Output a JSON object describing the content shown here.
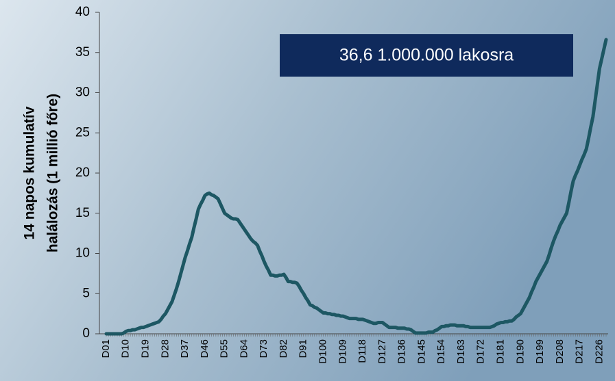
{
  "chart_data": {
    "type": "line",
    "ylabel": [
      "14 napos kumulatív",
      "halálozás (1 millió főre)"
    ],
    "annotation": "36,6 1.000.000 lakosra",
    "categories": [
      "D01",
      null,
      null,
      null,
      null,
      null,
      null,
      null,
      null,
      "D10",
      null,
      null,
      null,
      null,
      null,
      null,
      null,
      null,
      "D19",
      null,
      null,
      null,
      null,
      null,
      null,
      null,
      null,
      "D28",
      null,
      null,
      null,
      null,
      null,
      null,
      null,
      null,
      "D37",
      null,
      null,
      null,
      null,
      null,
      null,
      null,
      null,
      "D46",
      null,
      null,
      null,
      null,
      null,
      null,
      null,
      null,
      "D55",
      null,
      null,
      null,
      null,
      null,
      null,
      null,
      null,
      "D64",
      null,
      null,
      null,
      null,
      null,
      null,
      null,
      null,
      "D73",
      null,
      null,
      null,
      null,
      null,
      null,
      null,
      null,
      "D82",
      null,
      null,
      null,
      null,
      null,
      null,
      null,
      null,
      "D91",
      null,
      null,
      null,
      null,
      null,
      null,
      null,
      null,
      "D100",
      null,
      null,
      null,
      null,
      null,
      null,
      null,
      null,
      "D109",
      null,
      null,
      null,
      null,
      null,
      null,
      null,
      null,
      "D118",
      null,
      null,
      null,
      null,
      null,
      null,
      null,
      null,
      "D127",
      null,
      null,
      null,
      null,
      null,
      null,
      null,
      null,
      "D136",
      null,
      null,
      null,
      null,
      null,
      null,
      null,
      null,
      "D145",
      null,
      null,
      null,
      null,
      null,
      null,
      null,
      null,
      "D154",
      null,
      null,
      null,
      null,
      null,
      null,
      null,
      null,
      "D163",
      null,
      null,
      null,
      null,
      null,
      null,
      null,
      null,
      "D172",
      null,
      null,
      null,
      null,
      null,
      null,
      null,
      null,
      "D181",
      null,
      null,
      null,
      null,
      null,
      null,
      null,
      null,
      "D190",
      null,
      null,
      null,
      null,
      null,
      null,
      null,
      null,
      "D199",
      null,
      null,
      null,
      null,
      null,
      null,
      null,
      null,
      "D208",
      null,
      null,
      null,
      null,
      null,
      null,
      null,
      null,
      "D217",
      null,
      null,
      null,
      null,
      null,
      null,
      null,
      null,
      "D226",
      null,
      null,
      null
    ],
    "series": [
      {
        "name": null,
        "color": "#1d5763",
        "values": [
          0,
          0,
          0,
          0,
          0,
          0,
          0,
          0,
          0.1,
          0.3,
          0.4,
          0.4,
          0.5,
          0.5,
          0.6,
          0.7,
          0.8,
          0.8,
          0.9,
          1.0,
          1.1,
          1.2,
          1.3,
          1.4,
          1.5,
          1.8,
          2.2,
          2.5,
          3.0,
          3.5,
          4.0,
          4.8,
          5.6,
          6.5,
          7.5,
          8.5,
          9.5,
          10.3,
          11.2,
          12.0,
          13.2,
          14.3,
          15.5,
          16.1,
          16.6,
          17.2,
          17.4,
          17.5,
          17.3,
          17.2,
          17.0,
          16.8,
          16.2,
          15.6,
          15.0,
          14.8,
          14.6,
          14.4,
          14.3,
          14.3,
          14.2,
          13.8,
          13.4,
          13.0,
          12.6,
          12.2,
          11.8,
          11.5,
          11.3,
          11.0,
          10.3,
          9.7,
          9.0,
          8.4,
          7.9,
          7.3,
          7.3,
          7.2,
          7.2,
          7.3,
          7.3,
          7.4,
          7.0,
          6.5,
          6.5,
          6.4,
          6.4,
          6.3,
          5.9,
          5.4,
          5.0,
          4.5,
          4.1,
          3.6,
          3.5,
          3.3,
          3.2,
          3.0,
          2.8,
          2.6,
          2.6,
          2.5,
          2.5,
          2.4,
          2.4,
          2.3,
          2.3,
          2.2,
          2.2,
          2.1,
          2.0,
          1.9,
          1.9,
          1.9,
          1.9,
          1.8,
          1.8,
          1.8,
          1.7,
          1.6,
          1.5,
          1.4,
          1.3,
          1.3,
          1.4,
          1.4,
          1.4,
          1.2,
          1.0,
          0.8,
          0.8,
          0.8,
          0.8,
          0.7,
          0.7,
          0.7,
          0.7,
          0.6,
          0.6,
          0.5,
          0.3,
          0.1,
          0.1,
          0.1,
          0.1,
          0.1,
          0.1,
          0.2,
          0.2,
          0.2,
          0.4,
          0.5,
          0.7,
          0.9,
          0.9,
          1.0,
          1.0,
          1.1,
          1.1,
          1.1,
          1.0,
          1.0,
          1.0,
          1.0,
          0.9,
          0.9,
          0.8,
          0.8,
          0.8,
          0.8,
          0.8,
          0.8,
          0.8,
          0.8,
          0.8,
          0.8,
          0.9,
          1.0,
          1.2,
          1.3,
          1.4,
          1.4,
          1.5,
          1.5,
          1.6,
          1.6,
          1.8,
          2.1,
          2.3,
          2.5,
          3.0,
          3.5,
          4.0,
          4.5,
          5.2,
          5.8,
          6.5,
          7.0,
          7.5,
          8.0,
          8.5,
          9.0,
          9.8,
          10.7,
          11.5,
          12.2,
          12.8,
          13.5,
          14.0,
          14.5,
          15.0,
          16.3,
          17.7,
          19.0,
          19.7,
          20.3,
          21.0,
          21.7,
          22.3,
          23.0,
          24.3,
          25.7,
          27.0,
          29.0,
          31.0,
          33.0,
          34.2,
          35.4,
          36.6
        ]
      }
    ],
    "ylim": [
      0,
      40
    ],
    "yticks": [
      0,
      5,
      10,
      15,
      20,
      25,
      30,
      35,
      40
    ]
  }
}
